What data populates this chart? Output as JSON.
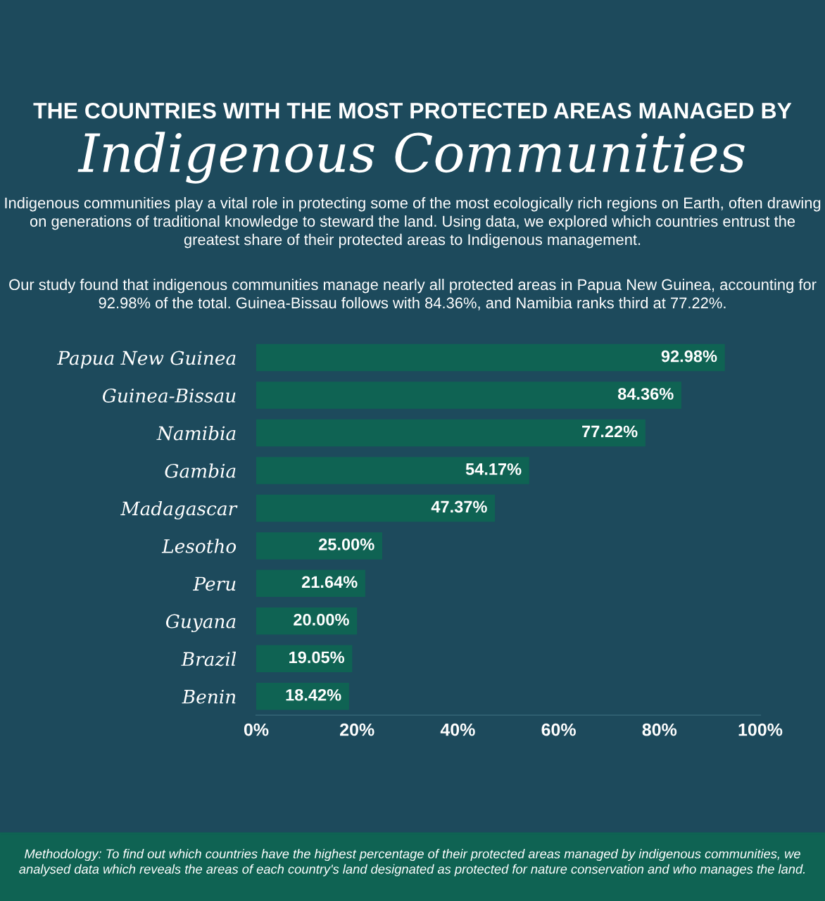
{
  "chart_data": {
    "type": "bar",
    "orientation": "horizontal",
    "title": "THE COUNTRIES WITH THE MOST PROTECTED AREAS MANAGED BY",
    "subtitle": "Indigenous Communities",
    "annotations": [
      "Indigenous communities play a vital role in protecting some of the most ecologically rich regions on Earth, often drawing on generations of traditional knowledge to steward the land. Using data, we explored which countries entrust the greatest share of their protected areas to Indigenous management.",
      "Our study found that indigenous communities manage nearly all protected areas in Papua New Guinea, accounting for 92.98% of the total. Guinea-Bissau follows with 84.36%, and Namibia ranks third at 77.22%.",
      "Methodology: To find out which countries have the highest percentage of their protected areas managed by indigenous communities, we analysed data which reveals the areas of each country's land designated as protected for nature conservation and who manages the land."
    ],
    "categories": [
      "Papua New Guinea",
      "Guinea-Bissau",
      "Namibia",
      "Gambia",
      "Madagascar",
      "Lesotho",
      "Peru",
      "Guyana",
      "Brazil",
      "Benin"
    ],
    "values": [
      92.98,
      84.36,
      77.22,
      54.17,
      47.37,
      25.0,
      21.64,
      20.0,
      19.05,
      18.42
    ],
    "value_labels": [
      "92.98%",
      "84.36%",
      "77.22%",
      "54.17%",
      "47.37%",
      "25.00%",
      "21.64%",
      "20.00%",
      "19.05%",
      "18.42%"
    ],
    "color": "#0f6353",
    "xlim": [
      0,
      100
    ],
    "xticks": [
      {
        "value": 0,
        "label": "0%"
      },
      {
        "value": 20,
        "label": "20%"
      },
      {
        "value": 40,
        "label": "40%"
      },
      {
        "value": 60,
        "label": "60%"
      },
      {
        "value": 80,
        "label": "80%"
      },
      {
        "value": 100,
        "label": "100%"
      }
    ],
    "grid": false,
    "legend": false
  }
}
